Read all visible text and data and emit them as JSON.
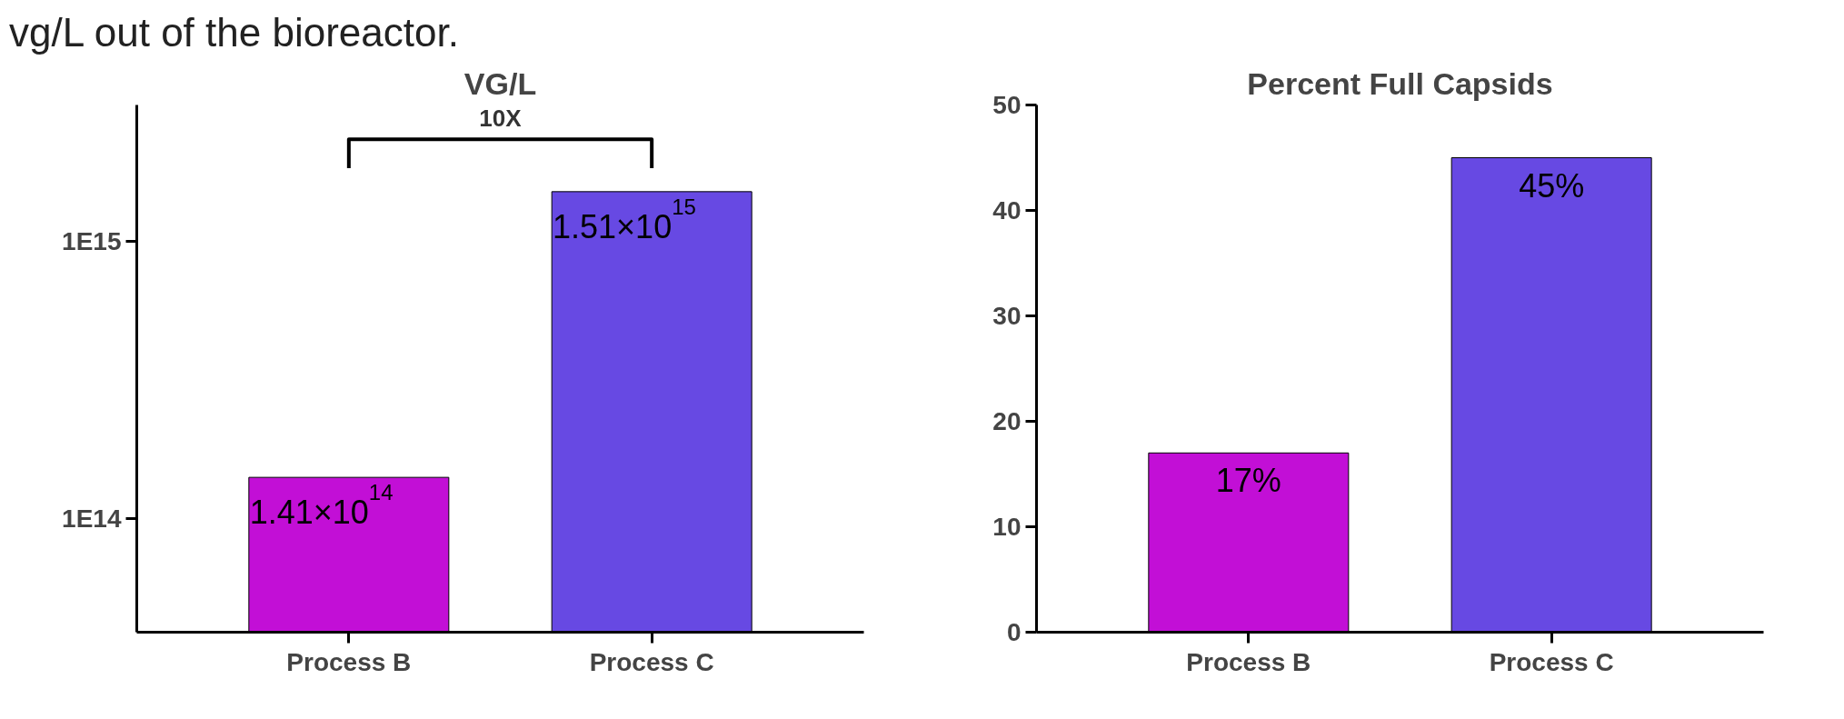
{
  "chart_data": [
    {
      "type": "bar",
      "title": "VG/L",
      "categories": [
        "Process B",
        "Process C"
      ],
      "values": [
        141000000000000.0,
        1510000000000000.0
      ],
      "colors": [
        "#c20fd6",
        "#6749e3"
      ],
      "value_labels": [
        "1.41×10$^{14}$",
        "1.51×10$^{15}$"
      ],
      "log": true,
      "ylim": [
        39000000000000.0,
        3100000000000000.0
      ],
      "yticks": [
        {
          "value": 100000000000000.0,
          "label": "1E14"
        },
        {
          "value": 1000000000000000.0,
          "label": "1E15"
        }
      ],
      "annotations": [
        "vg/L out of the bioreactor.",
        "10X"
      ],
      "grid": false
    },
    {
      "type": "bar",
      "title": "Percent Full Capsids",
      "categories": [
        "Process B",
        "Process C"
      ],
      "values": [
        17,
        45
      ],
      "colors": [
        "#c20fd6",
        "#6749e3"
      ],
      "value_labels": [
        "17%",
        "45%"
      ],
      "ylim": [
        0,
        50
      ],
      "yticks": [
        0,
        10,
        20,
        30,
        40,
        50
      ],
      "grid": false
    }
  ]
}
